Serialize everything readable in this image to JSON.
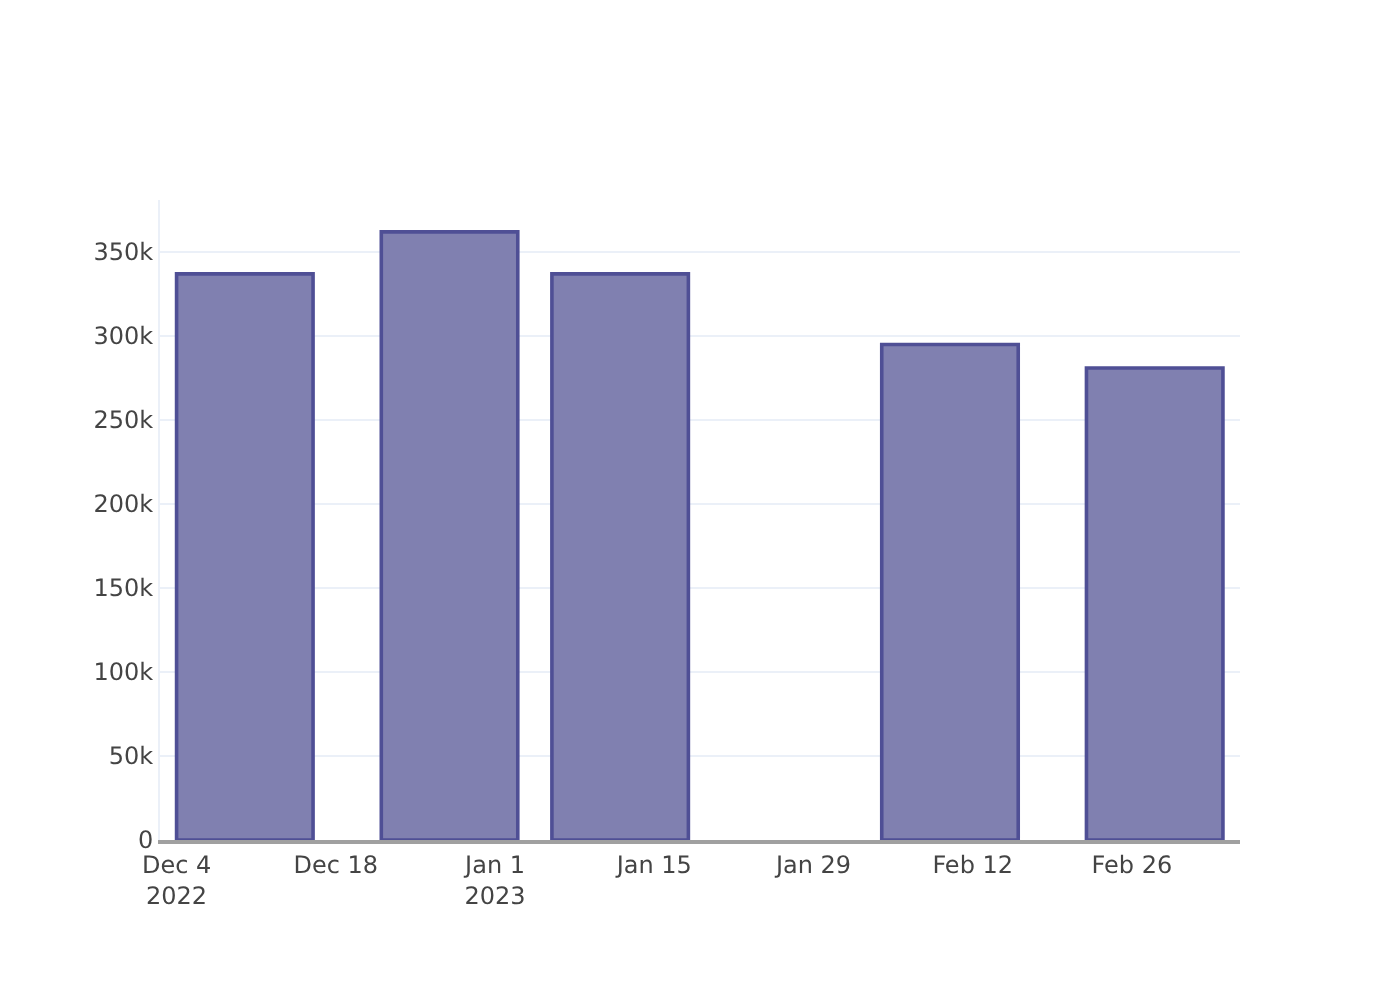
{
  "chart_data": {
    "type": "bar",
    "x": [
      "2022-12-10",
      "2022-12-28",
      "2023-01-12",
      "2023-02-10",
      "2023-02-28"
    ],
    "values": [
      337000,
      362000,
      337000,
      295000,
      281000
    ],
    "color": "#8080b0",
    "xlim": [
      "2022-12-02T13:00",
      "2023-03-07T12:00"
    ],
    "xticks": [
      {
        "value": "2022-12-04",
        "label": "Dec 4\n2022"
      },
      {
        "value": "2022-12-18",
        "label": "Dec 18"
      },
      {
        "value": "2023-01-01",
        "label": "Jan 1\n2023"
      },
      {
        "value": "2023-01-15",
        "label": "Jan 15"
      },
      {
        "value": "2023-01-29",
        "label": "Jan 29"
      },
      {
        "value": "2023-02-12",
        "label": "Feb 12"
      },
      {
        "value": "2023-02-26",
        "label": "Feb 26"
      }
    ],
    "ylim": [
      0,
      381000
    ],
    "yticks": [
      0,
      {
        "value": 50000,
        "label": "50k"
      },
      {
        "value": 100000,
        "label": "100k"
      },
      {
        "value": 150000,
        "label": "150k"
      },
      {
        "value": 200000,
        "label": "200k"
      },
      {
        "value": 250000,
        "label": "250k"
      },
      {
        "value": 300000,
        "label": "300k"
      },
      {
        "value": 350000,
        "label": "350k"
      }
    ],
    "grid": "y"
  }
}
